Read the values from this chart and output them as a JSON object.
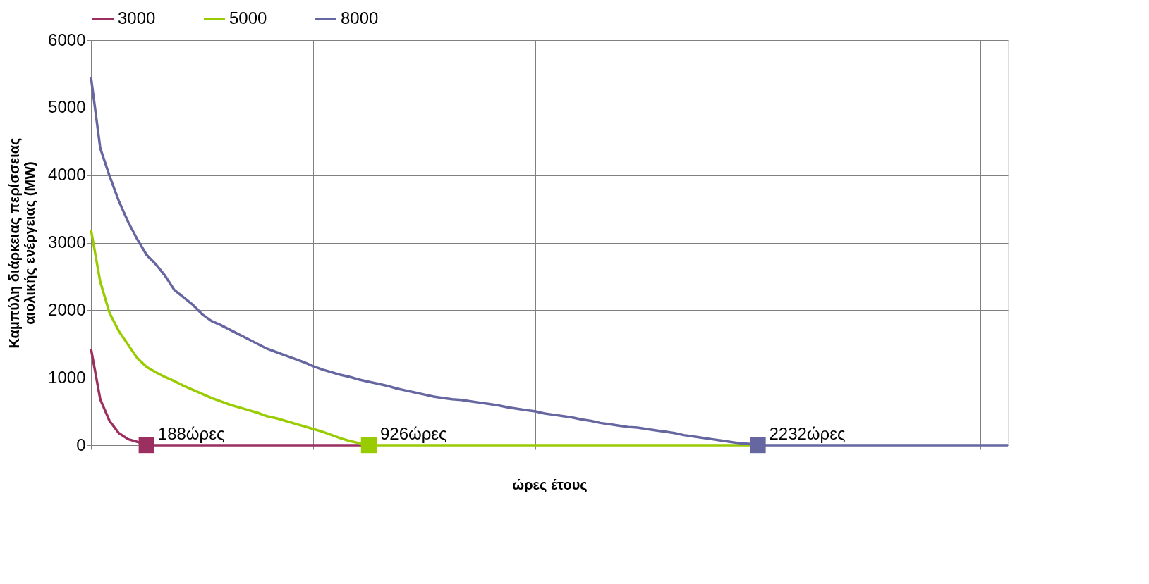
{
  "chart_data": {
    "type": "line",
    "xlabel": "ώρες έτους",
    "ylabel": "Καμπύλη διάρκειας περίσσειας\nαιολικής ενέργειας (MW)",
    "categories": [
      null,
      null,
      null,
      null,
      null,
      null,
      null,
      null,
      null,
      null,
      null,
      null,
      null,
      null,
      null,
      null,
      null,
      null,
      null,
      null,
      null,
      null,
      null,
      null,
      null,
      null,
      null,
      null,
      null,
      null,
      null,
      null,
      null,
      null,
      null,
      null,
      null,
      null,
      null,
      null,
      null,
      null,
      null,
      null,
      null,
      null,
      null,
      null,
      null,
      null,
      null,
      null,
      null,
      null,
      null,
      null,
      null,
      null,
      null,
      null,
      null,
      null,
      null,
      null,
      null,
      null,
      null,
      null,
      null,
      null,
      null,
      null,
      null,
      null,
      null,
      null,
      null,
      null,
      null,
      null,
      null,
      null,
      null,
      null,
      null,
      null,
      null,
      null,
      null,
      null,
      null,
      null,
      null,
      null,
      null,
      null,
      null,
      null,
      null,
      null
    ],
    "ylim": [
      0,
      6000
    ],
    "yticks": [
      0,
      1000,
      2000,
      3000,
      4000,
      5000,
      6000
    ],
    "grid": true,
    "legend": "top",
    "tick_labels": "y",
    "series": [
      {
        "name": "3000",
        "color": "#9b3060",
        "values": [
          1430,
          680,
          360,
          180,
          90,
          50,
          0,
          0,
          0,
          0,
          0,
          0,
          0,
          0,
          0,
          0,
          0,
          0,
          0,
          0,
          0,
          0,
          0,
          0,
          0,
          0,
          0,
          0,
          0,
          0,
          0,
          null,
          null,
          null,
          null,
          null,
          null,
          null,
          null,
          null,
          null,
          null,
          null,
          null,
          null,
          null,
          null,
          null,
          null,
          null,
          null,
          null,
          null,
          null,
          null,
          null,
          null,
          null,
          null,
          null,
          null,
          null,
          null,
          null,
          null,
          null,
          null,
          null,
          null,
          null,
          null,
          null,
          null,
          null,
          null,
          null,
          null,
          null,
          null,
          null,
          null,
          null,
          null,
          null,
          null,
          null,
          null,
          null,
          null,
          null,
          null,
          null,
          null,
          null,
          null,
          null,
          null,
          null,
          null,
          null
        ]
      },
      {
        "name": "5000",
        "color": "#99cc00",
        "values": [
          3190,
          2420,
          1960,
          1690,
          1490,
          1290,
          1160,
          1080,
          1010,
          950,
          880,
          820,
          760,
          700,
          650,
          600,
          560,
          520,
          480,
          430,
          400,
          360,
          320,
          280,
          240,
          200,
          150,
          100,
          60,
          30,
          0,
          0,
          0,
          0,
          0,
          0,
          0,
          0,
          0,
          0,
          0,
          0,
          0,
          0,
          0,
          0,
          0,
          0,
          0,
          0,
          0,
          0,
          0,
          0,
          0,
          0,
          0,
          0,
          0,
          0,
          0,
          0,
          0,
          0,
          0,
          0,
          0,
          0,
          0,
          0,
          0,
          0,
          0,
          null,
          null,
          null,
          null,
          null,
          null,
          null,
          null,
          null,
          null,
          null,
          null,
          null,
          null,
          null,
          null,
          null,
          null,
          null,
          null,
          null,
          null,
          null,
          null,
          null,
          null,
          null
        ]
      },
      {
        "name": "8000",
        "color": "#6666a0",
        "values": [
          5450,
          4400,
          3990,
          3620,
          3310,
          3050,
          2820,
          2680,
          2510,
          2300,
          2190,
          2080,
          1940,
          1840,
          1780,
          1710,
          1640,
          1570,
          1500,
          1430,
          1380,
          1330,
          1280,
          1230,
          1170,
          1120,
          1080,
          1040,
          1010,
          970,
          940,
          910,
          880,
          840,
          810,
          780,
          750,
          720,
          700,
          680,
          670,
          650,
          630,
          610,
          590,
          560,
          540,
          520,
          500,
          470,
          450,
          430,
          410,
          380,
          360,
          330,
          310,
          290,
          270,
          260,
          240,
          220,
          200,
          180,
          150,
          130,
          110,
          90,
          70,
          50,
          30,
          20,
          0,
          0,
          0,
          0,
          0,
          0,
          0,
          0,
          0,
          0,
          0,
          0,
          0,
          0,
          0,
          0,
          0,
          0,
          0,
          0,
          0,
          0,
          0,
          0,
          0,
          0,
          0,
          0
        ]
      },
      {
        "type": "scatter",
        "marker": "square",
        "color": "#9b3060",
        "values": [
          null,
          null,
          null,
          null,
          null,
          null,
          0,
          null,
          null,
          null,
          null,
          null,
          null,
          null,
          null,
          null,
          null,
          null,
          null,
          null,
          null,
          null,
          null,
          null,
          null,
          null,
          null,
          null,
          null,
          null,
          null,
          null,
          null,
          null,
          null,
          null,
          null,
          null,
          null,
          null,
          null,
          null,
          null,
          null,
          null,
          null,
          null,
          null,
          null,
          null,
          null,
          null,
          null,
          null,
          null,
          null,
          null,
          null,
          null,
          null,
          null,
          null,
          null,
          null,
          null,
          null,
          null,
          null,
          null,
          null,
          null,
          null,
          null,
          null,
          null,
          null,
          null,
          null,
          null,
          null,
          null,
          null,
          null,
          null,
          null,
          null,
          null,
          null,
          null,
          null,
          null,
          null,
          null,
          null,
          null,
          null,
          null,
          null,
          null,
          null
        ]
      },
      {
        "type": "scatter",
        "marker": "square",
        "color": "#99cc00",
        "values": [
          null,
          null,
          null,
          null,
          null,
          null,
          null,
          null,
          null,
          null,
          null,
          null,
          null,
          null,
          null,
          null,
          null,
          null,
          null,
          null,
          null,
          null,
          null,
          null,
          null,
          null,
          null,
          null,
          null,
          null,
          0,
          null,
          null,
          null,
          null,
          null,
          null,
          null,
          null,
          null,
          null,
          null,
          null,
          null,
          null,
          null,
          null,
          null,
          null,
          null,
          null,
          null,
          null,
          null,
          null,
          null,
          null,
          null,
          null,
          null,
          null,
          null,
          null,
          null,
          null,
          null,
          null,
          null,
          null,
          null,
          null,
          null,
          null,
          null,
          null,
          null,
          null,
          null,
          null,
          null,
          null,
          null,
          null,
          null,
          null,
          null,
          null,
          null,
          null,
          null,
          null,
          null,
          null,
          null,
          null,
          null,
          null,
          null,
          null,
          null
        ]
      },
      {
        "type": "scatter",
        "marker": "square",
        "color": "#6666a0",
        "values": [
          null,
          null,
          null,
          null,
          null,
          null,
          null,
          null,
          null,
          null,
          null,
          null,
          null,
          null,
          null,
          null,
          null,
          null,
          null,
          null,
          null,
          null,
          null,
          null,
          null,
          null,
          null,
          null,
          null,
          null,
          null,
          null,
          null,
          null,
          null,
          null,
          null,
          null,
          null,
          null,
          null,
          null,
          null,
          null,
          null,
          null,
          null,
          null,
          null,
          null,
          null,
          null,
          null,
          null,
          null,
          null,
          null,
          null,
          null,
          null,
          null,
          null,
          null,
          null,
          null,
          null,
          null,
          null,
          null,
          null,
          null,
          null,
          0,
          null,
          null,
          null,
          null,
          null,
          null,
          null,
          null,
          null,
          null,
          null,
          null,
          null,
          null,
          null,
          null,
          null,
          null,
          null,
          null,
          null,
          null,
          null,
          null,
          null,
          null,
          null
        ]
      }
    ],
    "annotations": [
      "188ώρες",
      "926ώρες",
      "2232ώρες"
    ]
  }
}
